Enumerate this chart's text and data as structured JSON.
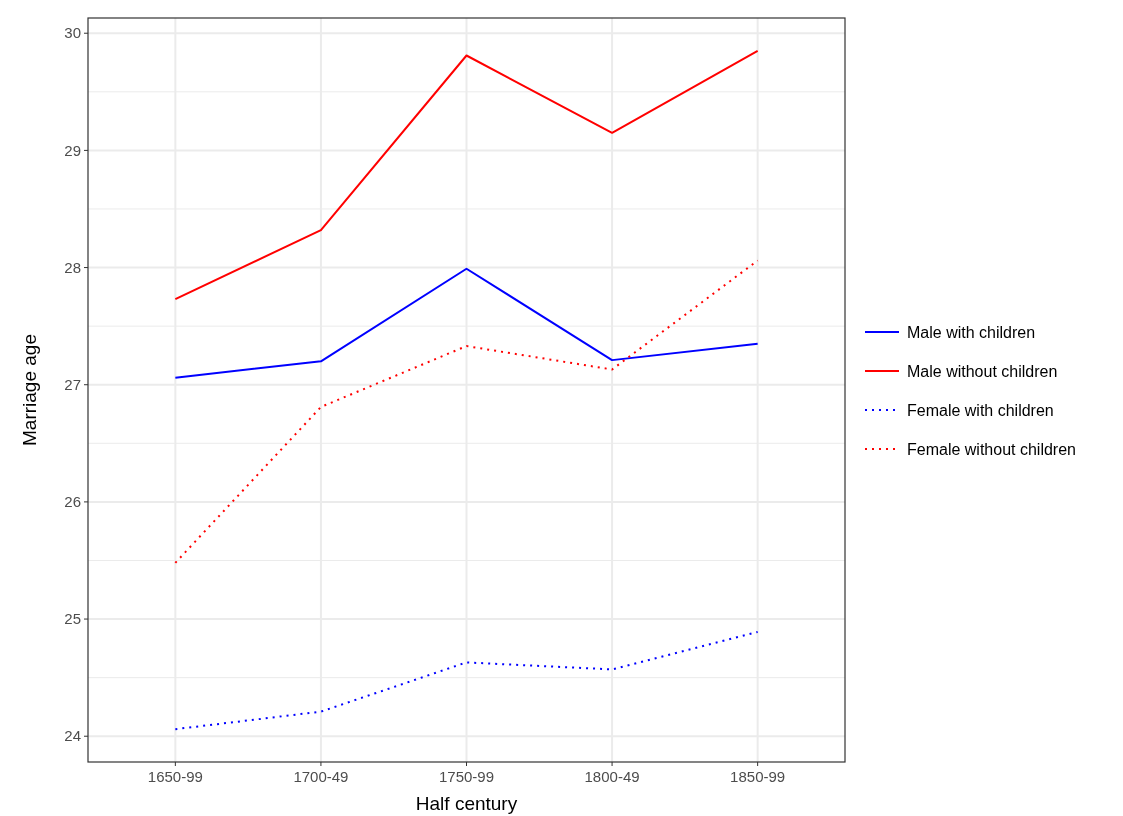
{
  "chart_data": {
    "type": "line",
    "xlabel": "Half century",
    "ylabel": "Marriage age",
    "categories": [
      "1650-99",
      "1700-49",
      "1750-99",
      "1800-49",
      "1850-99"
    ],
    "series": [
      {
        "name": "Male with children",
        "color": "#0000ff",
        "line_style": "solid",
        "values": [
          27.06,
          27.2,
          27.99,
          27.21,
          27.35
        ]
      },
      {
        "name": "Male without children",
        "color": "#ff0000",
        "line_style": "solid",
        "values": [
          27.73,
          28.32,
          29.81,
          29.15,
          29.85
        ]
      },
      {
        "name": "Female with children",
        "color": "#0000ff",
        "line_style": "dotted",
        "values": [
          24.06,
          24.21,
          24.63,
          24.57,
          24.89
        ]
      },
      {
        "name": "Female without children",
        "color": "#ff0000",
        "line_style": "dotted",
        "values": [
          25.48,
          26.81,
          27.33,
          27.13,
          28.06
        ]
      }
    ],
    "ylim": [
      23.78,
      30.13
    ],
    "yticks": [
      24,
      25,
      26,
      27,
      28,
      29,
      30
    ],
    "grid": true,
    "legend": "right"
  }
}
